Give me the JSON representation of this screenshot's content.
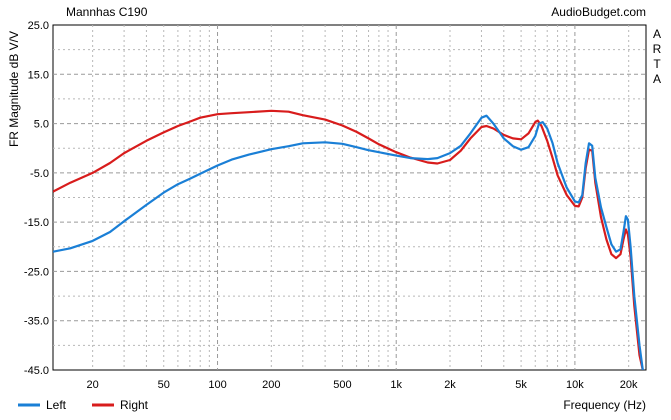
{
  "chart_data": {
    "type": "line",
    "title": "Mannhas C190",
    "watermark": "AudioBudget.com",
    "side_label": "ARTA",
    "xlabel": "Frequency (Hz)",
    "ylabel": "FR Magnitude dB V/V",
    "x_scale": "log",
    "xlim": [
      12,
      25000
    ],
    "ylim": [
      -45,
      25
    ],
    "grid": true,
    "legend_position": "bottom-left",
    "y_ticks": [
      {
        "value": 25,
        "label": "25.0"
      },
      {
        "value": 15,
        "label": "15.0"
      },
      {
        "value": 5,
        "label": "5.0"
      },
      {
        "value": -5,
        "label": "-5.0"
      },
      {
        "value": -15,
        "label": "-15.0"
      },
      {
        "value": -25,
        "label": "-25.0"
      },
      {
        "value": -35,
        "label": "-35.0"
      },
      {
        "value": -45,
        "label": "-45.0"
      }
    ],
    "x_ticks": [
      {
        "value": 20,
        "label": "20"
      },
      {
        "value": 50,
        "label": "50"
      },
      {
        "value": 100,
        "label": "100"
      },
      {
        "value": 200,
        "label": "200"
      },
      {
        "value": 500,
        "label": "500"
      },
      {
        "value": 1000,
        "label": "1k"
      },
      {
        "value": 2000,
        "label": "2k"
      },
      {
        "value": 5000,
        "label": "5k"
      },
      {
        "value": 10000,
        "label": "10k"
      },
      {
        "value": 20000,
        "label": "20k"
      }
    ],
    "series": [
      {
        "name": "Left",
        "color": "#1a7fd6",
        "points": [
          [
            12,
            -21
          ],
          [
            15,
            -20.3
          ],
          [
            20,
            -18.8
          ],
          [
            25,
            -17
          ],
          [
            30,
            -14.8
          ],
          [
            40,
            -11.5
          ],
          [
            50,
            -9
          ],
          [
            60,
            -7.3
          ],
          [
            70,
            -6.2
          ],
          [
            80,
            -5.2
          ],
          [
            100,
            -3.5
          ],
          [
            120,
            -2.3
          ],
          [
            150,
            -1.3
          ],
          [
            200,
            -0.2
          ],
          [
            250,
            0.4
          ],
          [
            300,
            1
          ],
          [
            400,
            1.2
          ],
          [
            500,
            0.9
          ],
          [
            600,
            0.2
          ],
          [
            700,
            -0.4
          ],
          [
            800,
            -0.8
          ],
          [
            1000,
            -1.5
          ],
          [
            1200,
            -2
          ],
          [
            1500,
            -2.2
          ],
          [
            1700,
            -2
          ],
          [
            2000,
            -1
          ],
          [
            2300,
            0.5
          ],
          [
            2600,
            3
          ],
          [
            3000,
            6.2
          ],
          [
            3200,
            6.6
          ],
          [
            3500,
            5
          ],
          [
            4000,
            2
          ],
          [
            4500,
            0.4
          ],
          [
            5000,
            -0.3
          ],
          [
            5500,
            0.2
          ],
          [
            6000,
            2.5
          ],
          [
            6300,
            5
          ],
          [
            6600,
            5.3
          ],
          [
            7000,
            4
          ],
          [
            7500,
            1
          ],
          [
            8000,
            -3
          ],
          [
            9000,
            -8
          ],
          [
            10000,
            -10.8
          ],
          [
            10500,
            -11
          ],
          [
            11000,
            -9.5
          ],
          [
            11500,
            -3
          ],
          [
            12000,
            1
          ],
          [
            12500,
            0.5
          ],
          [
            13000,
            -6
          ],
          [
            14000,
            -12
          ],
          [
            15000,
            -16
          ],
          [
            16000,
            -19.5
          ],
          [
            17000,
            -21
          ],
          [
            18000,
            -20.5
          ],
          [
            18700,
            -17
          ],
          [
            19300,
            -13.8
          ],
          [
            19800,
            -14.5
          ],
          [
            20500,
            -20
          ],
          [
            21500,
            -30
          ],
          [
            23000,
            -40
          ],
          [
            24000,
            -45
          ]
        ]
      },
      {
        "name": "Right",
        "color": "#d81c1c",
        "points": [
          [
            12,
            -8.8
          ],
          [
            15,
            -7
          ],
          [
            20,
            -5
          ],
          [
            25,
            -3
          ],
          [
            30,
            -1
          ],
          [
            40,
            1.5
          ],
          [
            50,
            3.2
          ],
          [
            60,
            4.5
          ],
          [
            70,
            5.4
          ],
          [
            80,
            6.2
          ],
          [
            100,
            6.9
          ],
          [
            120,
            7.1
          ],
          [
            150,
            7.3
          ],
          [
            200,
            7.6
          ],
          [
            250,
            7.4
          ],
          [
            300,
            6.7
          ],
          [
            400,
            5.8
          ],
          [
            500,
            4.6
          ],
          [
            600,
            3.3
          ],
          [
            700,
            2
          ],
          [
            800,
            0.8
          ],
          [
            1000,
            -0.8
          ],
          [
            1200,
            -1.9
          ],
          [
            1500,
            -2.9
          ],
          [
            1700,
            -3.1
          ],
          [
            2000,
            -2.4
          ],
          [
            2300,
            -0.5
          ],
          [
            2600,
            2
          ],
          [
            3000,
            4.3
          ],
          [
            3200,
            4.5
          ],
          [
            3500,
            4
          ],
          [
            4000,
            2.7
          ],
          [
            4500,
            2
          ],
          [
            5000,
            1.8
          ],
          [
            5500,
            3
          ],
          [
            6000,
            5.3
          ],
          [
            6200,
            5.6
          ],
          [
            6500,
            4.5
          ],
          [
            7000,
            1.5
          ],
          [
            7500,
            -2
          ],
          [
            8000,
            -5.5
          ],
          [
            9000,
            -9.5
          ],
          [
            10000,
            -11.7
          ],
          [
            10500,
            -11.8
          ],
          [
            11000,
            -10
          ],
          [
            11500,
            -4
          ],
          [
            12000,
            -0.3
          ],
          [
            12500,
            -0.5
          ],
          [
            13000,
            -7
          ],
          [
            14000,
            -14
          ],
          [
            15000,
            -18.5
          ],
          [
            16000,
            -21.5
          ],
          [
            17000,
            -22.3
          ],
          [
            18000,
            -21.5
          ],
          [
            18700,
            -18.5
          ],
          [
            19300,
            -16.5
          ],
          [
            19800,
            -17.5
          ],
          [
            20500,
            -22
          ],
          [
            21500,
            -32
          ],
          [
            23000,
            -42
          ],
          [
            24000,
            -45
          ]
        ]
      }
    ]
  }
}
